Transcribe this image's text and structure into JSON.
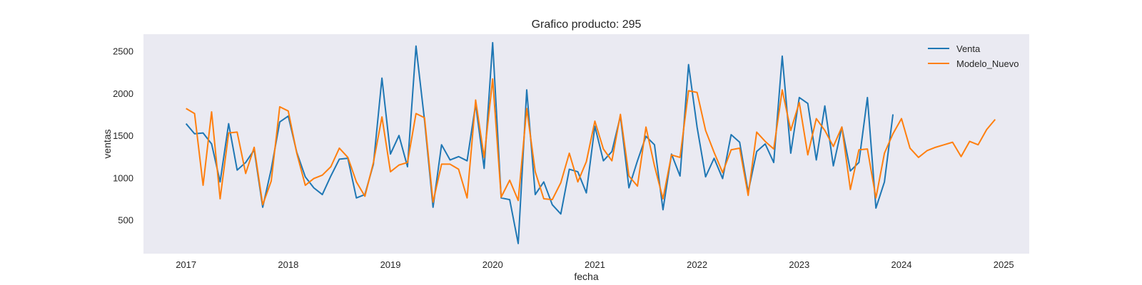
{
  "chart_data": {
    "type": "line",
    "title": "Grafico producto: 295",
    "xlabel": "fecha",
    "ylabel": "ventas",
    "x_start": "2017-01",
    "xlim": [
      "2016-08",
      "2025-04"
    ],
    "ylim": [
      100,
      2700
    ],
    "x_ticks": [
      "2017",
      "2018",
      "2019",
      "2020",
      "2021",
      "2022",
      "2023",
      "2024",
      "2025"
    ],
    "y_ticks": [
      500,
      1000,
      1500,
      2000,
      2500
    ],
    "grid": false,
    "legend_position": "top-right",
    "background": "#eaeaf2",
    "series": [
      {
        "name": "Venta",
        "color": "#1f77b4",
        "values": [
          1640,
          1520,
          1530,
          1400,
          950,
          1640,
          1090,
          1180,
          1330,
          650,
          1100,
          1660,
          1730,
          1300,
          1010,
          880,
          800,
          1020,
          1220,
          1230,
          760,
          800,
          1160,
          2180,
          1280,
          1500,
          1130,
          2560,
          1680,
          650,
          1390,
          1210,
          1250,
          1200,
          1870,
          1110,
          2600,
          760,
          740,
          220,
          2040,
          800,
          950,
          680,
          570,
          1100,
          1070,
          820,
          1610,
          1200,
          1310,
          1730,
          880,
          1200,
          1490,
          1390,
          620,
          1280,
          1020,
          2340,
          1600,
          1010,
          1230,
          990,
          1510,
          1420,
          830,
          1310,
          1400,
          1180,
          2440,
          1290,
          1950,
          1880,
          1210,
          1850,
          1140,
          1600,
          1080,
          1180,
          1950,
          640,
          950,
          1750
        ]
      },
      {
        "name": "Modelo_Nuevo",
        "color": "#ff7f0e",
        "values": [
          1820,
          1760,
          910,
          1780,
          750,
          1530,
          1540,
          1050,
          1360,
          680,
          960,
          1840,
          1790,
          1290,
          910,
          990,
          1030,
          1130,
          1350,
          1240,
          950,
          780,
          1180,
          1720,
          1070,
          1150,
          1180,
          1760,
          1710,
          710,
          1160,
          1160,
          1100,
          760,
          1920,
          1240,
          2170,
          770,
          970,
          730,
          1820,
          1070,
          750,
          740,
          940,
          1290,
          950,
          1190,
          1670,
          1340,
          1200,
          1750,
          1020,
          900,
          1600,
          1140,
          750,
          1270,
          1240,
          2030,
          2010,
          1560,
          1300,
          1060,
          1330,
          1350,
          790,
          1540,
          1430,
          1340,
          2040,
          1560,
          1890,
          1270,
          1700,
          1560,
          1370,
          1600,
          860,
          1330,
          1340,
          760,
          1290,
          1520,
          1700,
          1350,
          1240,
          1320,
          1360,
          1390,
          1420,
          1250,
          1430,
          1390,
          1570,
          1690
        ]
      }
    ]
  }
}
